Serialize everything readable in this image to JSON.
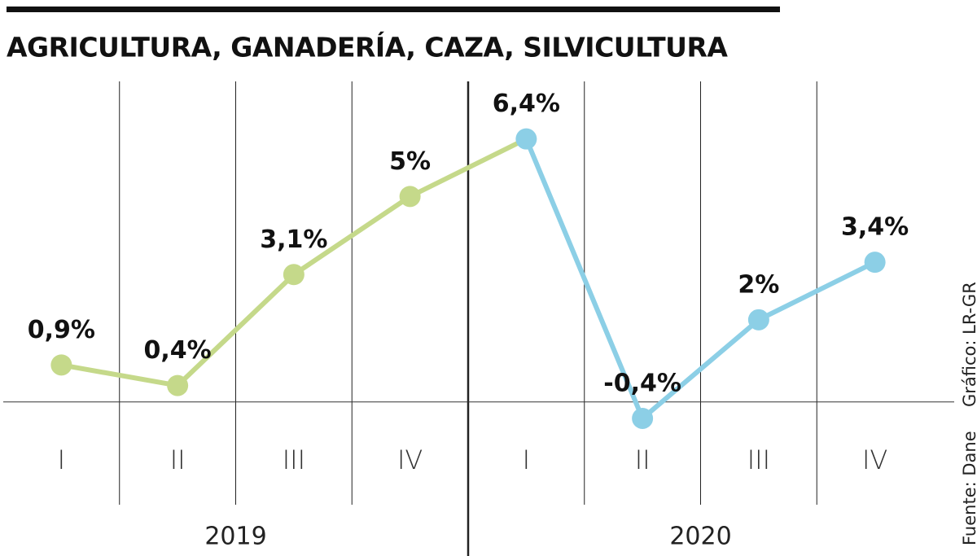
{
  "chart_data": {
    "type": "line",
    "title": "AGRICULTURA, GANADERÍA, CAZA, SILVICULTURA",
    "categories": [
      "I",
      "II",
      "III",
      "IV",
      "I",
      "II",
      "III",
      "IV"
    ],
    "year_labels": [
      "2019",
      "2020"
    ],
    "values": [
      0.9,
      0.4,
      3.1,
      5,
      6.4,
      -0.4,
      2,
      3.4
    ],
    "value_labels": [
      "0,9%",
      "0,4%",
      "3,1%",
      "5%",
      "6,4%",
      "-0,4%",
      "2%",
      "3,4%"
    ],
    "colors": [
      "#c5d98a",
      "#c5d98a",
      "#c5d98a",
      "#c5d98a",
      "#8ccfe6",
      "#8ccfe6",
      "#8ccfe6",
      "#8ccfe6"
    ],
    "ylim": [
      -2.5,
      7.8
    ],
    "source": "Fuente: Dane",
    "credit": "Gráfico: LR-GR"
  }
}
